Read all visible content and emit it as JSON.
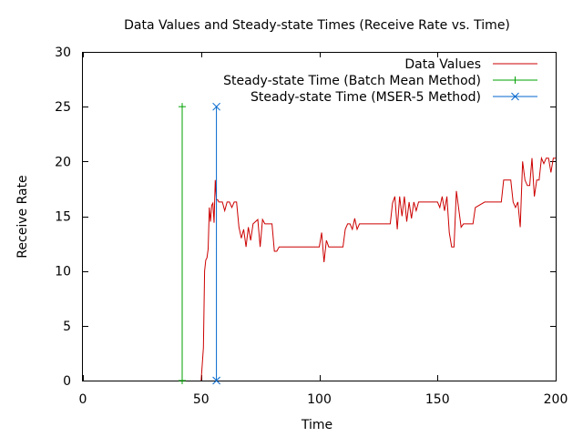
{
  "chart_data": {
    "type": "line",
    "title": "Data Values and Steady-state Times (Receive Rate vs. Time)",
    "xlabel": "Time",
    "ylabel": "Receive Rate",
    "xlim": [
      0,
      200
    ],
    "ylim": [
      0,
      30
    ],
    "xticks": [
      0,
      50,
      100,
      150,
      200
    ],
    "yticks": [
      0,
      5,
      10,
      15,
      20,
      25,
      30
    ],
    "grid": false,
    "legend_position": "top-right",
    "series": [
      {
        "name": "Data Values",
        "color": "#cc0000",
        "marker": "none",
        "x": [
          50,
          51,
          51.5,
          52,
          52.5,
          53,
          53.5,
          54,
          54.5,
          55,
          55.5,
          56,
          56.5,
          57,
          57.5,
          58,
          59,
          60,
          61,
          62,
          63,
          64,
          65,
          66,
          67,
          68,
          69,
          70,
          71,
          72,
          73,
          74,
          75,
          76,
          77,
          78,
          79,
          80,
          81,
          82,
          83,
          84,
          85,
          86,
          87,
          88,
          90,
          95,
          100,
          101,
          102,
          103,
          104,
          105,
          110,
          111,
          112,
          113,
          114,
          115,
          116,
          117,
          118,
          120,
          125,
          130,
          131,
          132,
          133,
          134,
          135,
          136,
          137,
          138,
          139,
          140,
          141,
          142,
          143,
          144,
          145,
          150,
          151,
          152,
          153,
          154,
          155,
          156,
          157,
          158,
          160,
          161,
          162,
          163,
          164,
          165,
          166,
          170,
          175,
          176,
          177,
          178,
          179,
          180,
          181,
          182,
          183,
          184,
          185,
          186,
          187,
          188,
          189,
          190,
          191,
          192,
          193,
          194,
          195,
          196,
          197,
          198,
          199,
          200
        ],
        "y": [
          0,
          3,
          10,
          11,
          11.2,
          12,
          15.8,
          14.5,
          16,
          16.2,
          14.4,
          18.3,
          16.5,
          16.5,
          16.3,
          16.3,
          16.3,
          15.5,
          16.3,
          16.3,
          15.8,
          16.3,
          16.3,
          14,
          13,
          13.8,
          12.2,
          14,
          12.8,
          14.3,
          14.5,
          14.7,
          12.2,
          14.7,
          14.3,
          14.3,
          14.3,
          14.3,
          11.8,
          11.8,
          12.2,
          12.2,
          12.2,
          12.2,
          12.2,
          12.2,
          12.2,
          12.2,
          12.2,
          13.5,
          10.8,
          12.8,
          12.2,
          12.2,
          12.2,
          13.8,
          14.3,
          14.3,
          13.8,
          14.8,
          13.8,
          14.3,
          14.3,
          14.3,
          14.3,
          14.3,
          16.2,
          16.8,
          13.8,
          16.8,
          15,
          16.8,
          14.5,
          16.3,
          14.8,
          16.3,
          15.5,
          16.3,
          16.3,
          16.3,
          16.3,
          16.3,
          15.8,
          16.8,
          15.5,
          16.8,
          13.5,
          12.2,
          12.2,
          17.3,
          14,
          14.3,
          14.3,
          14.3,
          14.3,
          14.3,
          15.8,
          16.3,
          16.3,
          16.3,
          16.3,
          18.3,
          18.3,
          18.3,
          18.3,
          16.3,
          15.8,
          16.3,
          14,
          20,
          18.3,
          17.8,
          17.8,
          20.3,
          16.8,
          18.3,
          18.3,
          20.3,
          19.8,
          20.3,
          20.3,
          19,
          20.3,
          20.3
        ]
      },
      {
        "name": "Steady-state Time (Batch Mean Method)",
        "color": "#00a000",
        "marker": "plus",
        "x": [
          42,
          42
        ],
        "y": [
          0,
          25
        ]
      },
      {
        "name": "Steady-state Time (MSER-5 Method)",
        "color": "#0066cc",
        "marker": "x",
        "x": [
          56.5,
          56.5
        ],
        "y": [
          0,
          25
        ]
      }
    ]
  }
}
